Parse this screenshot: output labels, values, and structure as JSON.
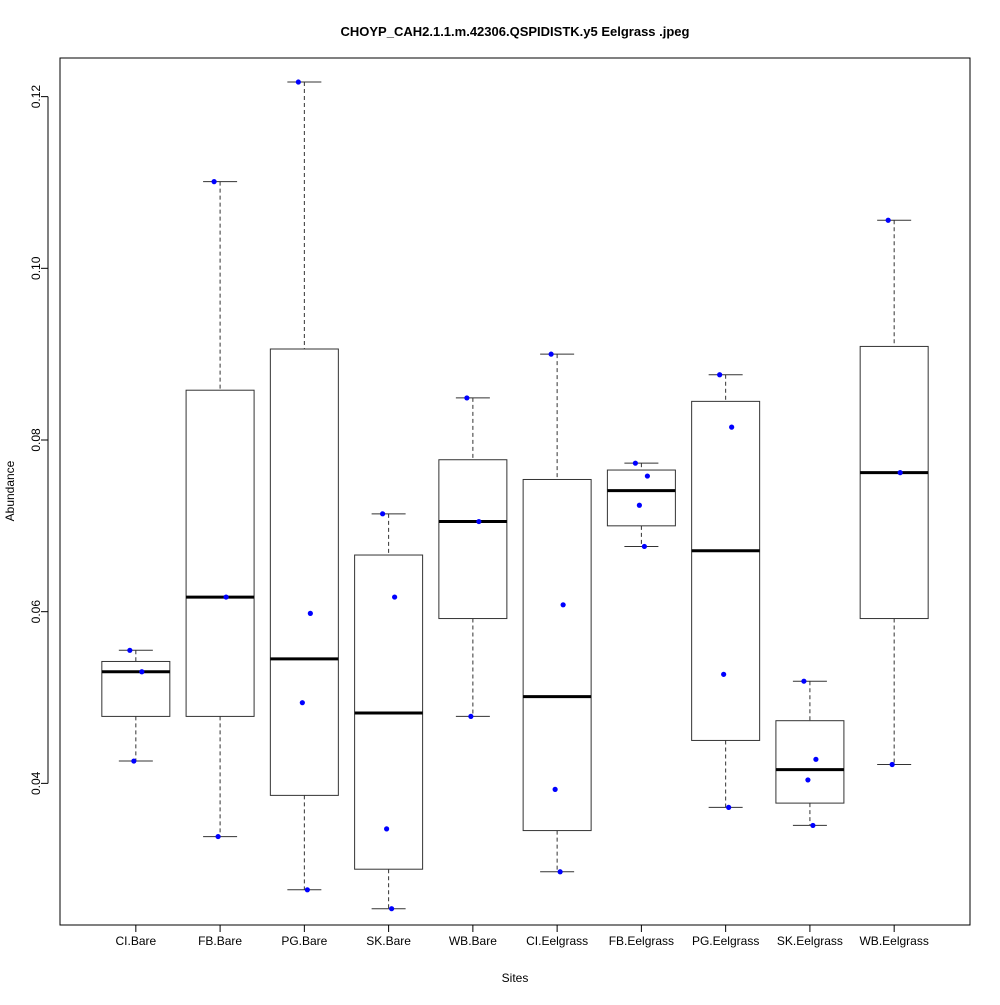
{
  "chart_data": {
    "type": "box",
    "title": "CHOYP_CAH2.1.1.m.42306.QSPIDISTK.y5 Eelgrass .jpeg",
    "xlabel": "Sites",
    "ylabel": "Abundance",
    "ylim": [
      0.0235,
      0.1245
    ],
    "yticks": [
      0.04,
      0.06,
      0.08,
      0.1,
      0.12
    ],
    "ytick_labels": [
      "0.04",
      "0.06",
      "0.08",
      "0.10",
      "0.12"
    ],
    "grid": false,
    "point_color": "#0000ff",
    "categories": [
      "CI.Bare",
      "FB.Bare",
      "PG.Bare",
      "SK.Bare",
      "WB.Bare",
      "CI.Eelgrass",
      "FB.Eelgrass",
      "PG.Eelgrass",
      "SK.Eelgrass",
      "WB.Eelgrass"
    ],
    "boxes": [
      {
        "min": 0.0426,
        "q1": 0.0478,
        "median": 0.053,
        "q3": 0.0542,
        "max": 0.0555,
        "points": [
          0.0555,
          0.053,
          0.0426
        ]
      },
      {
        "min": 0.0338,
        "q1": 0.0478,
        "median": 0.0617,
        "q3": 0.0858,
        "max": 0.1101,
        "points": [
          0.1101,
          0.0617,
          0.0338
        ]
      },
      {
        "min": 0.0276,
        "q1": 0.0386,
        "median": 0.0545,
        "q3": 0.0906,
        "max": 0.1217,
        "points": [
          0.1217,
          0.0598,
          0.0494,
          0.0276
        ]
      },
      {
        "min": 0.0254,
        "q1": 0.03,
        "median": 0.0482,
        "q3": 0.0666,
        "max": 0.0714,
        "points": [
          0.0714,
          0.0617,
          0.0347,
          0.0254
        ]
      },
      {
        "min": 0.0478,
        "q1": 0.0592,
        "median": 0.0705,
        "q3": 0.0777,
        "max": 0.0849,
        "points": [
          0.0849,
          0.0705,
          0.0478
        ]
      },
      {
        "min": 0.0297,
        "q1": 0.0345,
        "median": 0.0501,
        "q3": 0.0754,
        "max": 0.09,
        "points": [
          0.09,
          0.0608,
          0.0393,
          0.0297
        ]
      },
      {
        "min": 0.0676,
        "q1": 0.07,
        "median": 0.0741,
        "q3": 0.0765,
        "max": 0.0773,
        "points": [
          0.0773,
          0.0758,
          0.0724,
          0.0676
        ]
      },
      {
        "min": 0.0372,
        "q1": 0.045,
        "median": 0.0671,
        "q3": 0.0845,
        "max": 0.0876,
        "points": [
          0.0876,
          0.0815,
          0.0527,
          0.0372
        ]
      },
      {
        "min": 0.0351,
        "q1": 0.0377,
        "median": 0.0416,
        "q3": 0.0473,
        "max": 0.0519,
        "points": [
          0.0519,
          0.0428,
          0.0404,
          0.0351
        ]
      },
      {
        "min": 0.0422,
        "q1": 0.0592,
        "median": 0.0762,
        "q3": 0.0909,
        "max": 0.1056,
        "points": [
          0.1056,
          0.0762,
          0.0422
        ]
      }
    ]
  }
}
